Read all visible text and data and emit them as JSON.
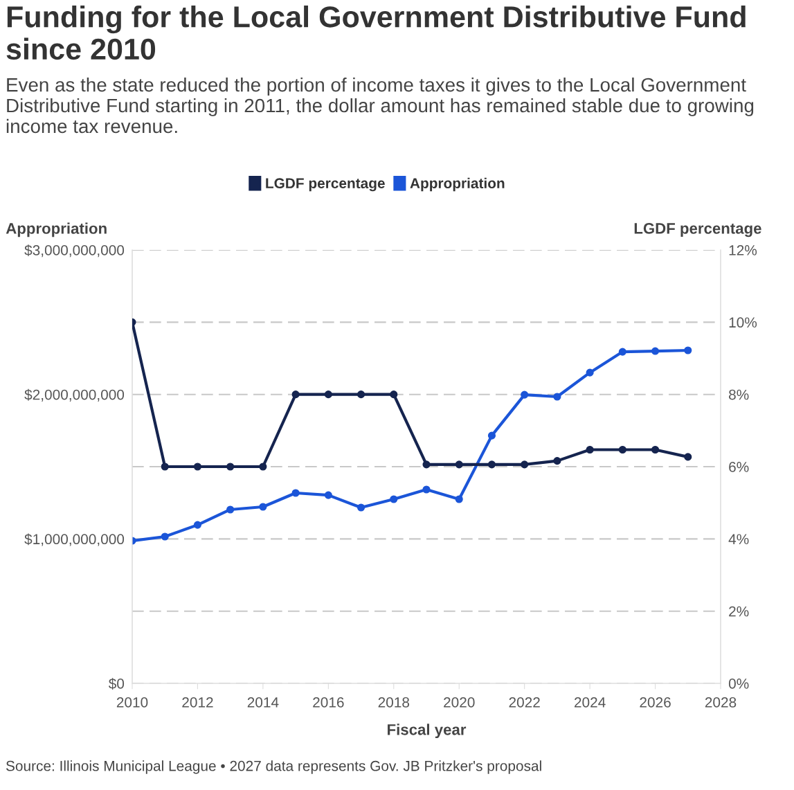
{
  "chart_data": {
    "type": "line",
    "title": "Funding for the Local Government Distributive Fund since 2010",
    "subtitle": "Even as the state reduced the portion of income taxes it gives to the Local Government Distributive Fund starting in 2011, the dollar amount has remained stable due to growing income tax revenue.",
    "xlabel": "Fiscal year",
    "ylabel": "Appropriation",
    "y2label": "LGDF percentage",
    "x": [
      2010,
      2011,
      2012,
      2013,
      2014,
      2015,
      2016,
      2017,
      2018,
      2019,
      2020,
      2021,
      2022,
      2023,
      2024,
      2025,
      2026,
      2027
    ],
    "series": [
      {
        "name": "LGDF percentage",
        "color": "#15244f",
        "axis": "y2",
        "values": [
          10,
          6,
          6,
          6,
          6,
          8,
          8,
          8,
          8,
          6.06,
          6.06,
          6.06,
          6.06,
          6.16,
          6.47,
          6.47,
          6.47,
          6.27
        ]
      },
      {
        "name": "Appropriation",
        "color": "#1b55d8",
        "axis": "y",
        "values": [
          987000000,
          1016000000,
          1097000000,
          1203000000,
          1222000000,
          1318000000,
          1303000000,
          1217000000,
          1275000000,
          1342000000,
          1275000000,
          1715000000,
          1998000000,
          1984000000,
          2151000000,
          2295000000,
          2300000000,
          2305000000
        ]
      }
    ],
    "xlim": [
      2010,
      2028
    ],
    "xticks": [
      2010,
      2012,
      2014,
      2016,
      2018,
      2020,
      2022,
      2024,
      2026,
      2028
    ],
    "ylim": [
      0,
      3000000000
    ],
    "yticks": [
      {
        "value": 0,
        "label": "$0"
      },
      {
        "value": 500000000,
        "label": null
      },
      {
        "value": 1000000000,
        "label": "$1,000,000,000"
      },
      {
        "value": 1500000000,
        "label": null
      },
      {
        "value": 2000000000,
        "label": "$2,000,000,000"
      },
      {
        "value": 2500000000,
        "label": null
      },
      {
        "value": 3000000000,
        "label": "$3,000,000,000"
      }
    ],
    "y2lim": [
      0,
      12
    ],
    "y2ticks": [
      {
        "value": 0,
        "label": "0%"
      },
      {
        "value": 2,
        "label": "2%"
      },
      {
        "value": 4,
        "label": "4%"
      },
      {
        "value": 6,
        "label": "6%"
      },
      {
        "value": 8,
        "label": "8%"
      },
      {
        "value": 10,
        "label": "10%"
      },
      {
        "value": 12,
        "label": "12%"
      }
    ],
    "grid": "y",
    "legend": "top",
    "marker": "circle",
    "line_style": "solid",
    "annotations": [
      "Source: Illinois Municipal League • 2027 data represents Gov. JB Pritzker's proposal"
    ]
  }
}
